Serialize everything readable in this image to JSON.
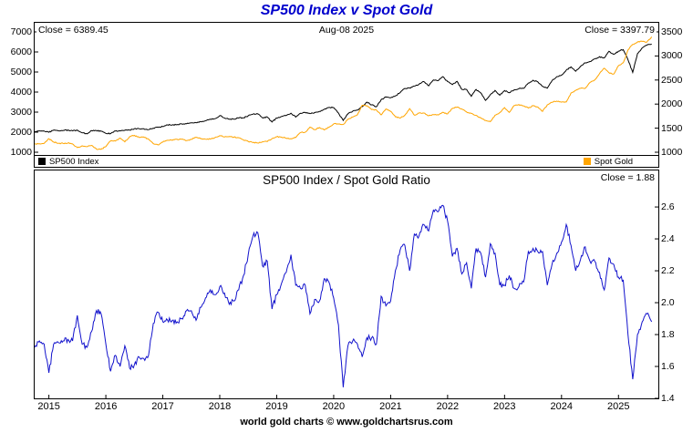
{
  "title": "SP500 Index v Spot Gold",
  "footer": "world gold charts © www.goldchartsrus.com",
  "colors": {
    "title_blue": "#0000CC",
    "sp500_line": "#000000",
    "spot_gold_line": "#FFA500",
    "ratio_line": "#1212CC"
  },
  "chart_data": [
    {
      "id": "price-panel",
      "type": "line",
      "title": "SP500 Index v Spot Gold",
      "annotations": {
        "left_close": "Close = 6389.45",
        "date": "Aug-08 2025",
        "right_close": "Close = 3397.79"
      },
      "legend": [
        {
          "label": "SP500 Index",
          "color": "#000000"
        },
        {
          "label": "Spot Gold",
          "color": "#FFA500"
        }
      ],
      "x0": 2014.75,
      "x_step": 0.0833333,
      "x_domain": [
        2014.75,
        2025.7
      ],
      "left_axis": {
        "name": "SP500 Index",
        "domain": [
          273,
          7454
        ],
        "ticks": [
          {
            "v": 7000,
            "label": "7000"
          },
          {
            "v": 6000,
            "label": "6000"
          },
          {
            "v": 5000,
            "label": "5000"
          },
          {
            "v": 4000,
            "label": "4000"
          },
          {
            "v": 3000,
            "label": "3000"
          },
          {
            "v": 2000,
            "label": "2000"
          },
          {
            "v": 1000,
            "label": "1000"
          }
        ]
      },
      "right_axis": {
        "name": "Spot Gold",
        "domain": [
          697,
          3689
        ],
        "ticks": [
          {
            "v": 3500,
            "label": "3500"
          },
          {
            "v": 3000,
            "label": "3000"
          },
          {
            "v": 2500,
            "label": "2500"
          },
          {
            "v": 2000,
            "label": "2000"
          },
          {
            "v": 1500,
            "label": "1500"
          },
          {
            "v": 1000,
            "label": "1000"
          }
        ]
      },
      "series": [
        {
          "name": "SP500 Index",
          "axis": "left",
          "color": "#000000",
          "jitter": 26,
          "values": [
            2018,
            2068,
            2059,
            1995,
            2105,
            2068,
            2086,
            2107,
            2063,
            2104,
            1972,
            1920,
            2079,
            2080,
            2044,
            1940,
            1932,
            2060,
            2065,
            2097,
            2099,
            2174,
            2171,
            2168,
            2126,
            2199,
            2239,
            2279,
            2364,
            2363,
            2384,
            2412,
            2423,
            2470,
            2472,
            2519,
            2575,
            2648,
            2674,
            2824,
            2714,
            2641,
            2648,
            2705,
            2718,
            2816,
            2902,
            2914,
            2712,
            2760,
            2507,
            2704,
            2784,
            2834,
            2946,
            2752,
            2942,
            2980,
            2926,
            2977,
            3038,
            3141,
            3231,
            3226,
            2954,
            2585,
            2912,
            3044,
            3100,
            3271,
            3500,
            3363,
            3270,
            3622,
            3756,
            3714,
            3811,
            3973,
            4181,
            4204,
            4298,
            4395,
            4523,
            4308,
            4605,
            4567,
            4766,
            4516,
            4374,
            4530,
            4132,
            4132,
            3785,
            4130,
            3955,
            3586,
            3872,
            4080,
            3840,
            4077,
            3970,
            4109,
            4169,
            4180,
            4450,
            4589,
            4508,
            4288,
            4194,
            4568,
            4770,
            4846,
            5096,
            5254,
            5036,
            5278,
            5460,
            5522,
            5648,
            5762,
            5705,
            6032,
            5882,
            6041,
            6115,
            5612,
            4983,
            5912,
            6205,
            6339,
            6389
          ]
        },
        {
          "name": "Spot Gold",
          "axis": "right",
          "color": "#FFA500",
          "jitter": 10,
          "values": [
            1173,
            1176,
            1184,
            1283,
            1213,
            1184,
            1184,
            1190,
            1172,
            1096,
            1135,
            1115,
            1142,
            1065,
            1061,
            1118,
            1234,
            1232,
            1293,
            1215,
            1322,
            1351,
            1309,
            1317,
            1272,
            1178,
            1152,
            1211,
            1249,
            1249,
            1268,
            1269,
            1242,
            1269,
            1311,
            1280,
            1271,
            1275,
            1303,
            1345,
            1318,
            1325,
            1315,
            1301,
            1253,
            1224,
            1201,
            1192,
            1215,
            1222,
            1282,
            1321,
            1313,
            1292,
            1283,
            1306,
            1409,
            1414,
            1520,
            1472,
            1513,
            1464,
            1517,
            1589,
            1586,
            1577,
            1686,
            1730,
            1781,
            1976,
            1968,
            1886,
            1879,
            1777,
            1898,
            1848,
            1734,
            1708,
            1769,
            1907,
            1770,
            1814,
            1814,
            1757,
            1783,
            1775,
            1829,
            1797,
            1909,
            1937,
            1897,
            1837,
            1807,
            1766,
            1711,
            1661,
            1634,
            1769,
            1824,
            1928,
            1827,
            1969,
            1990,
            1963,
            1919,
            1965,
            1940,
            1849,
            1984,
            2036,
            2063,
            2040,
            2044,
            2230,
            2286,
            2327,
            2327,
            2448,
            2503,
            2635,
            2744,
            2651,
            2625,
            2798,
            2858,
            3124,
            3240,
            3289,
            3303,
            3290,
            3398
          ]
        }
      ]
    },
    {
      "id": "ratio-panel",
      "type": "line",
      "title": "SP500 Index / Spot Gold Ratio",
      "annotations": {
        "close": "Close = 1.88"
      },
      "x0": 2014.75,
      "x_step": 0.0833333,
      "x_domain": [
        2014.75,
        2025.7
      ],
      "right_axis": {
        "name": "SP500 / Spot Gold Ratio",
        "domain": [
          1.4,
          2.829
        ],
        "ticks": [
          {
            "v": 2.6,
            "label": "2.6"
          },
          {
            "v": 2.4,
            "label": "2.4"
          },
          {
            "v": 2.2,
            "label": "2.2"
          },
          {
            "v": 2.0,
            "label": "2.0"
          },
          {
            "v": 1.8,
            "label": "1.8"
          },
          {
            "v": 1.6,
            "label": "1.6"
          },
          {
            "v": 1.4,
            "label": "1.4"
          }
        ]
      },
      "x_ticks": [
        {
          "v": 2015,
          "label": "2015"
        },
        {
          "v": 2016,
          "label": "2016"
        },
        {
          "v": 2017,
          "label": "2017"
        },
        {
          "v": 2018,
          "label": "2018"
        },
        {
          "v": 2019,
          "label": "2019"
        },
        {
          "v": 2020,
          "label": "2020"
        },
        {
          "v": 2021,
          "label": "2021"
        },
        {
          "v": 2022,
          "label": "2022"
        },
        {
          "v": 2023,
          "label": "2023"
        },
        {
          "v": 2024,
          "label": "2024"
        },
        {
          "v": 2025,
          "label": "2025"
        }
      ],
      "series": [
        {
          "name": "SP500 / Spot Gold Ratio",
          "axis": "right",
          "color": "#1212CC",
          "jitter": 0.017,
          "values": [
            1.72,
            1.76,
            1.74,
            1.56,
            1.74,
            1.75,
            1.76,
            1.77,
            1.76,
            1.92,
            1.74,
            1.72,
            1.82,
            1.95,
            1.93,
            1.74,
            1.57,
            1.67,
            1.6,
            1.73,
            1.59,
            1.61,
            1.66,
            1.65,
            1.67,
            1.87,
            1.94,
            1.88,
            1.89,
            1.89,
            1.88,
            1.9,
            1.95,
            1.95,
            1.89,
            1.97,
            2.03,
            2.08,
            2.05,
            2.1,
            2.06,
            1.99,
            2.01,
            2.08,
            2.17,
            2.3,
            2.42,
            2.44,
            2.23,
            2.26,
            1.96,
            2.05,
            2.12,
            2.19,
            2.3,
            2.11,
            2.09,
            2.11,
            1.93,
            2.02,
            2.01,
            2.15,
            2.13,
            2.03,
            1.86,
            1.47,
            1.73,
            1.76,
            1.74,
            1.66,
            1.78,
            1.78,
            1.74,
            2.04,
            1.98,
            2.01,
            2.2,
            2.33,
            2.36,
            2.2,
            2.43,
            2.42,
            2.49,
            2.45,
            2.58,
            2.57,
            2.61,
            2.51,
            2.29,
            2.34,
            2.18,
            2.25,
            2.09,
            2.34,
            2.31,
            2.16,
            2.37,
            2.31,
            2.11,
            2.11,
            2.17,
            2.09,
            2.1,
            2.13,
            2.32,
            2.34,
            2.32,
            2.32,
            2.11,
            2.24,
            2.31,
            2.38,
            2.49,
            2.36,
            2.2,
            2.27,
            2.35,
            2.26,
            2.26,
            2.19,
            2.08,
            2.28,
            2.24,
            2.16,
            2.14,
            1.8,
            1.52,
            1.8,
            1.88,
            1.93,
            1.88
          ]
        }
      ]
    }
  ]
}
